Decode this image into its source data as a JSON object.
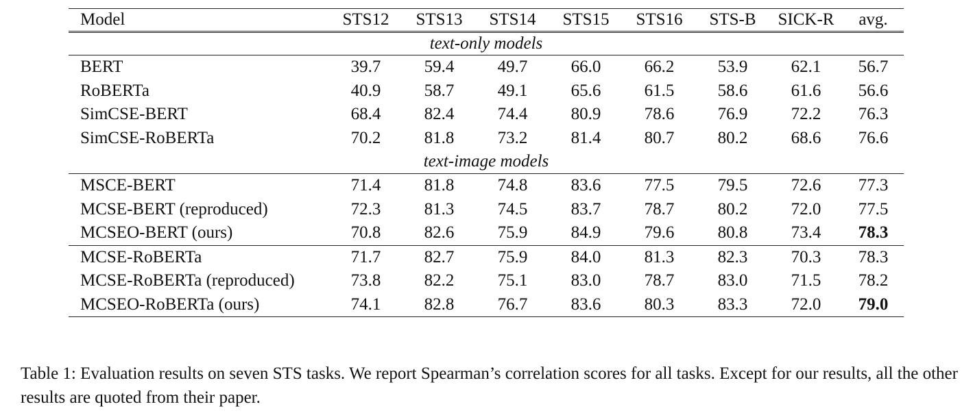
{
  "table": {
    "columns": [
      "Model",
      "STS12",
      "STS13",
      "STS14",
      "STS15",
      "STS16",
      "STS-B",
      "SICK-R",
      "avg."
    ],
    "groups": [
      {
        "label": "text-only models",
        "blocks": [
          [
            {
              "model": "BERT",
              "values": [
                "39.7",
                "59.4",
                "49.7",
                "66.0",
                "66.2",
                "53.9",
                "62.1",
                "56.7"
              ],
              "best_avg": false
            },
            {
              "model": "RoBERTa",
              "values": [
                "40.9",
                "58.7",
                "49.1",
                "65.6",
                "61.5",
                "58.6",
                "61.6",
                "56.6"
              ],
              "best_avg": false
            },
            {
              "model": "SimCSE-BERT",
              "values": [
                "68.4",
                "82.4",
                "74.4",
                "80.9",
                "78.6",
                "76.9",
                "72.2",
                "76.3"
              ],
              "best_avg": false
            },
            {
              "model": "SimCSE-RoBERTa",
              "values": [
                "70.2",
                "81.8",
                "73.2",
                "81.4",
                "80.7",
                "80.2",
                "68.6",
                "76.6"
              ],
              "best_avg": false
            }
          ]
        ]
      },
      {
        "label": "text-image models",
        "blocks": [
          [
            {
              "model": "MSCE-BERT",
              "values": [
                "71.4",
                "81.8",
                "74.8",
                "83.6",
                "77.5",
                "79.5",
                "72.6",
                "77.3"
              ],
              "best_avg": false
            },
            {
              "model": "MCSE-BERT (reproduced)",
              "values": [
                "72.3",
                "81.3",
                "74.5",
                "83.7",
                "78.7",
                "80.2",
                "72.0",
                "77.5"
              ],
              "best_avg": false
            },
            {
              "model": "MCSEO-BERT (ours)",
              "values": [
                "70.8",
                "82.6",
                "75.9",
                "84.9",
                "79.6",
                "80.8",
                "73.4",
                "78.3"
              ],
              "best_avg": true
            }
          ],
          [
            {
              "model": "MCSE-RoBERTa",
              "values": [
                "71.7",
                "82.7",
                "75.9",
                "84.0",
                "81.3",
                "82.3",
                "70.3",
                "78.3"
              ],
              "best_avg": false
            },
            {
              "model": "MCSE-RoBERTa (reproduced)",
              "values": [
                "73.8",
                "82.2",
                "75.1",
                "83.0",
                "78.7",
                "83.0",
                "71.5",
                "78.2"
              ],
              "best_avg": false
            },
            {
              "model": "MCSEO-RoBERTa (ours)",
              "values": [
                "74.1",
                "82.8",
                "76.7",
                "83.6",
                "80.3",
                "83.3",
                "72.0",
                "79.0"
              ],
              "best_avg": true
            }
          ]
        ]
      }
    ]
  },
  "caption": "Table 1: Evaluation results on seven STS tasks. We report Spearman’s correlation scores for all tasks. Except for our results, all the other results are quoted from their paper."
}
